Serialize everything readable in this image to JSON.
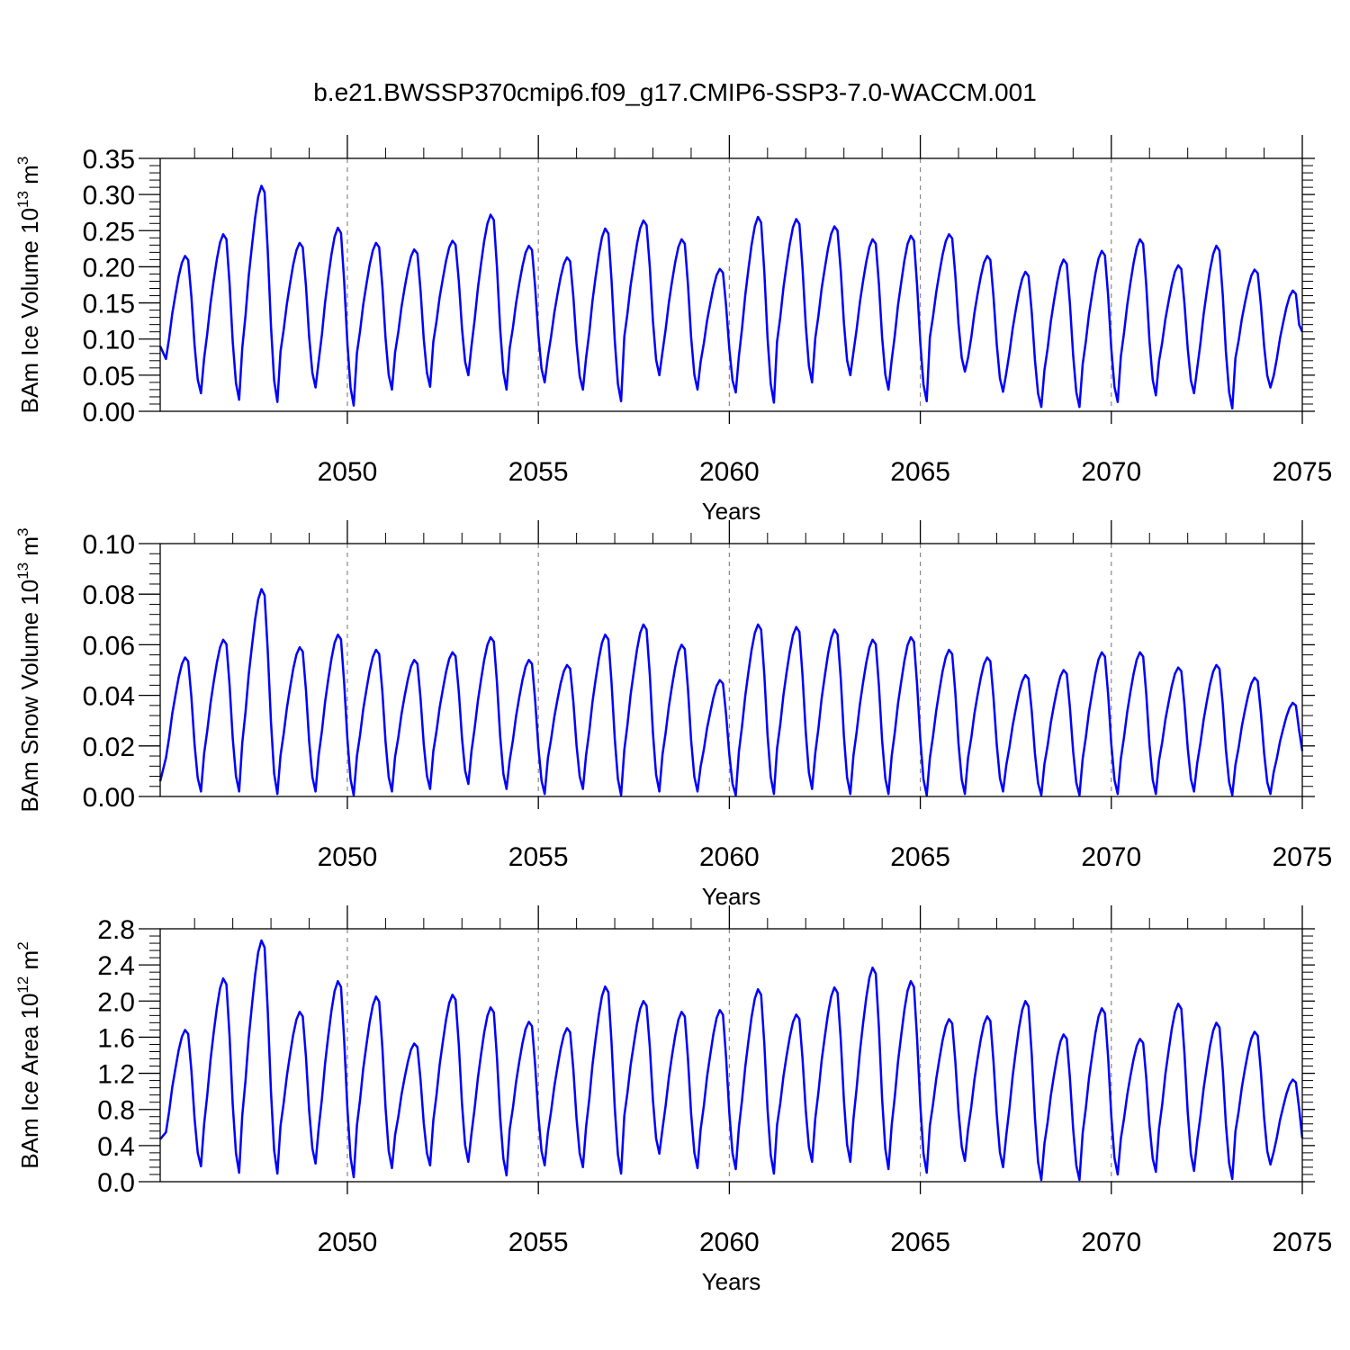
{
  "title": "b.e21.BWSSP370cmip6.f09_g17.CMIP6-SSP3-7.0-WACCM.001",
  "colors": {
    "series": "#0000ff",
    "axis": "#000000",
    "grid": "#888888"
  },
  "chart_data": [
    {
      "type": "line",
      "ylabel": "BAm Ice Volume 10",
      "ylabel_exp": "13",
      "ylabel_unit": " m",
      "ylabel_unit_exp": "3",
      "xlabel": "Years",
      "xlim": [
        2045.1,
        2075.0
      ],
      "ylim": [
        0.0,
        0.35
      ],
      "yticks": [
        "0.00",
        "0.05",
        "0.10",
        "0.15",
        "0.20",
        "0.25",
        "0.30",
        "0.35"
      ],
      "xticks": [
        "2050",
        "2055",
        "2060",
        "2065",
        "2070",
        "2075"
      ],
      "grid": "vertical dashed at 2050, 2055, 2060, 2065, 2070",
      "series_name": "Ice Volume",
      "annual_max": [
        0.215,
        0.245,
        0.312,
        0.233,
        0.254,
        0.233,
        0.224,
        0.236,
        0.272,
        0.229,
        0.213,
        0.253,
        0.264,
        0.238,
        0.197,
        0.269,
        0.266,
        0.256,
        0.238,
        0.243,
        0.245,
        0.215,
        0.193,
        0.21,
        0.222,
        0.238,
        0.202,
        0.229,
        0.196,
        0.167
      ],
      "annual_min": [
        0.025,
        0.016,
        0.013,
        0.033,
        0.008,
        0.03,
        0.034,
        0.05,
        0.03,
        0.04,
        0.03,
        0.014,
        0.05,
        0.03,
        0.026,
        0.012,
        0.04,
        0.05,
        0.03,
        0.014,
        0.055,
        0.027,
        0.006,
        0.006,
        0.013,
        0.022,
        0.025,
        0.004,
        0.033,
        0.01
      ],
      "start_value": 0.09,
      "end_value": 0.11
    },
    {
      "type": "line",
      "ylabel": "BAm Snow Volume 10",
      "ylabel_exp": "13",
      "ylabel_unit": " m",
      "ylabel_unit_exp": "3",
      "xlabel": "Years",
      "xlim": [
        2045.1,
        2075.0
      ],
      "ylim": [
        0.0,
        0.1
      ],
      "yticks": [
        "0.00",
        "0.02",
        "0.04",
        "0.06",
        "0.08",
        "0.10"
      ],
      "xticks": [
        "2050",
        "2055",
        "2060",
        "2065",
        "2070",
        "2075"
      ],
      "grid": "vertical dashed at 2050, 2055, 2060, 2065, 2070",
      "series_name": "Snow Volume",
      "annual_max": [
        0.055,
        0.062,
        0.082,
        0.059,
        0.064,
        0.058,
        0.054,
        0.057,
        0.063,
        0.054,
        0.052,
        0.064,
        0.068,
        0.06,
        0.046,
        0.068,
        0.067,
        0.066,
        0.062,
        0.063,
        0.058,
        0.055,
        0.048,
        0.05,
        0.057,
        0.057,
        0.051,
        0.052,
        0.047,
        0.037
      ],
      "annual_min": [
        0.002,
        0.002,
        0.001,
        0.002,
        0.0005,
        0.002,
        0.003,
        0.005,
        0.003,
        0.001,
        0.003,
        0.0005,
        0.002,
        0.002,
        0.0005,
        0.001,
        0.003,
        0.001,
        0.001,
        0.0005,
        0.001,
        0.002,
        0.0005,
        0.0005,
        0.001,
        0.001,
        0.002,
        0.0005,
        0.001,
        0.0005
      ],
      "start_value": 0.006,
      "end_value": 0.018
    },
    {
      "type": "line",
      "ylabel": "BAm Ice Area 10",
      "ylabel_exp": "12",
      "ylabel_unit": " m",
      "ylabel_unit_exp": "2",
      "xlabel": "Years",
      "xlim": [
        2045.1,
        2075.0
      ],
      "ylim": [
        0.0,
        2.8
      ],
      "yticks": [
        "0.0",
        "0.4",
        "0.8",
        "1.2",
        "1.6",
        "2.0",
        "2.4",
        "2.8"
      ],
      "xticks": [
        "2050",
        "2055",
        "2060",
        "2065",
        "2070",
        "2075"
      ],
      "grid": "vertical dashed at 2050, 2055, 2060, 2065, 2070",
      "series_name": "Ice Area",
      "annual_max": [
        1.68,
        2.25,
        2.67,
        1.88,
        2.22,
        2.05,
        1.53,
        2.07,
        1.93,
        1.77,
        1.7,
        2.16,
        2.0,
        1.88,
        1.9,
        2.13,
        1.85,
        2.15,
        2.37,
        2.22,
        1.8,
        1.83,
        2.0,
        1.63,
        1.92,
        1.58,
        1.97,
        1.76,
        1.66,
        1.13
      ],
      "annual_min": [
        0.17,
        0.1,
        0.09,
        0.2,
        0.05,
        0.15,
        0.18,
        0.22,
        0.07,
        0.18,
        0.16,
        0.09,
        0.31,
        0.15,
        0.14,
        0.09,
        0.22,
        0.22,
        0.14,
        0.1,
        0.23,
        0.16,
        0.02,
        0.02,
        0.08,
        0.11,
        0.12,
        0.03,
        0.19,
        0.06
      ],
      "start_value": 0.47,
      "end_value": 0.48
    }
  ]
}
